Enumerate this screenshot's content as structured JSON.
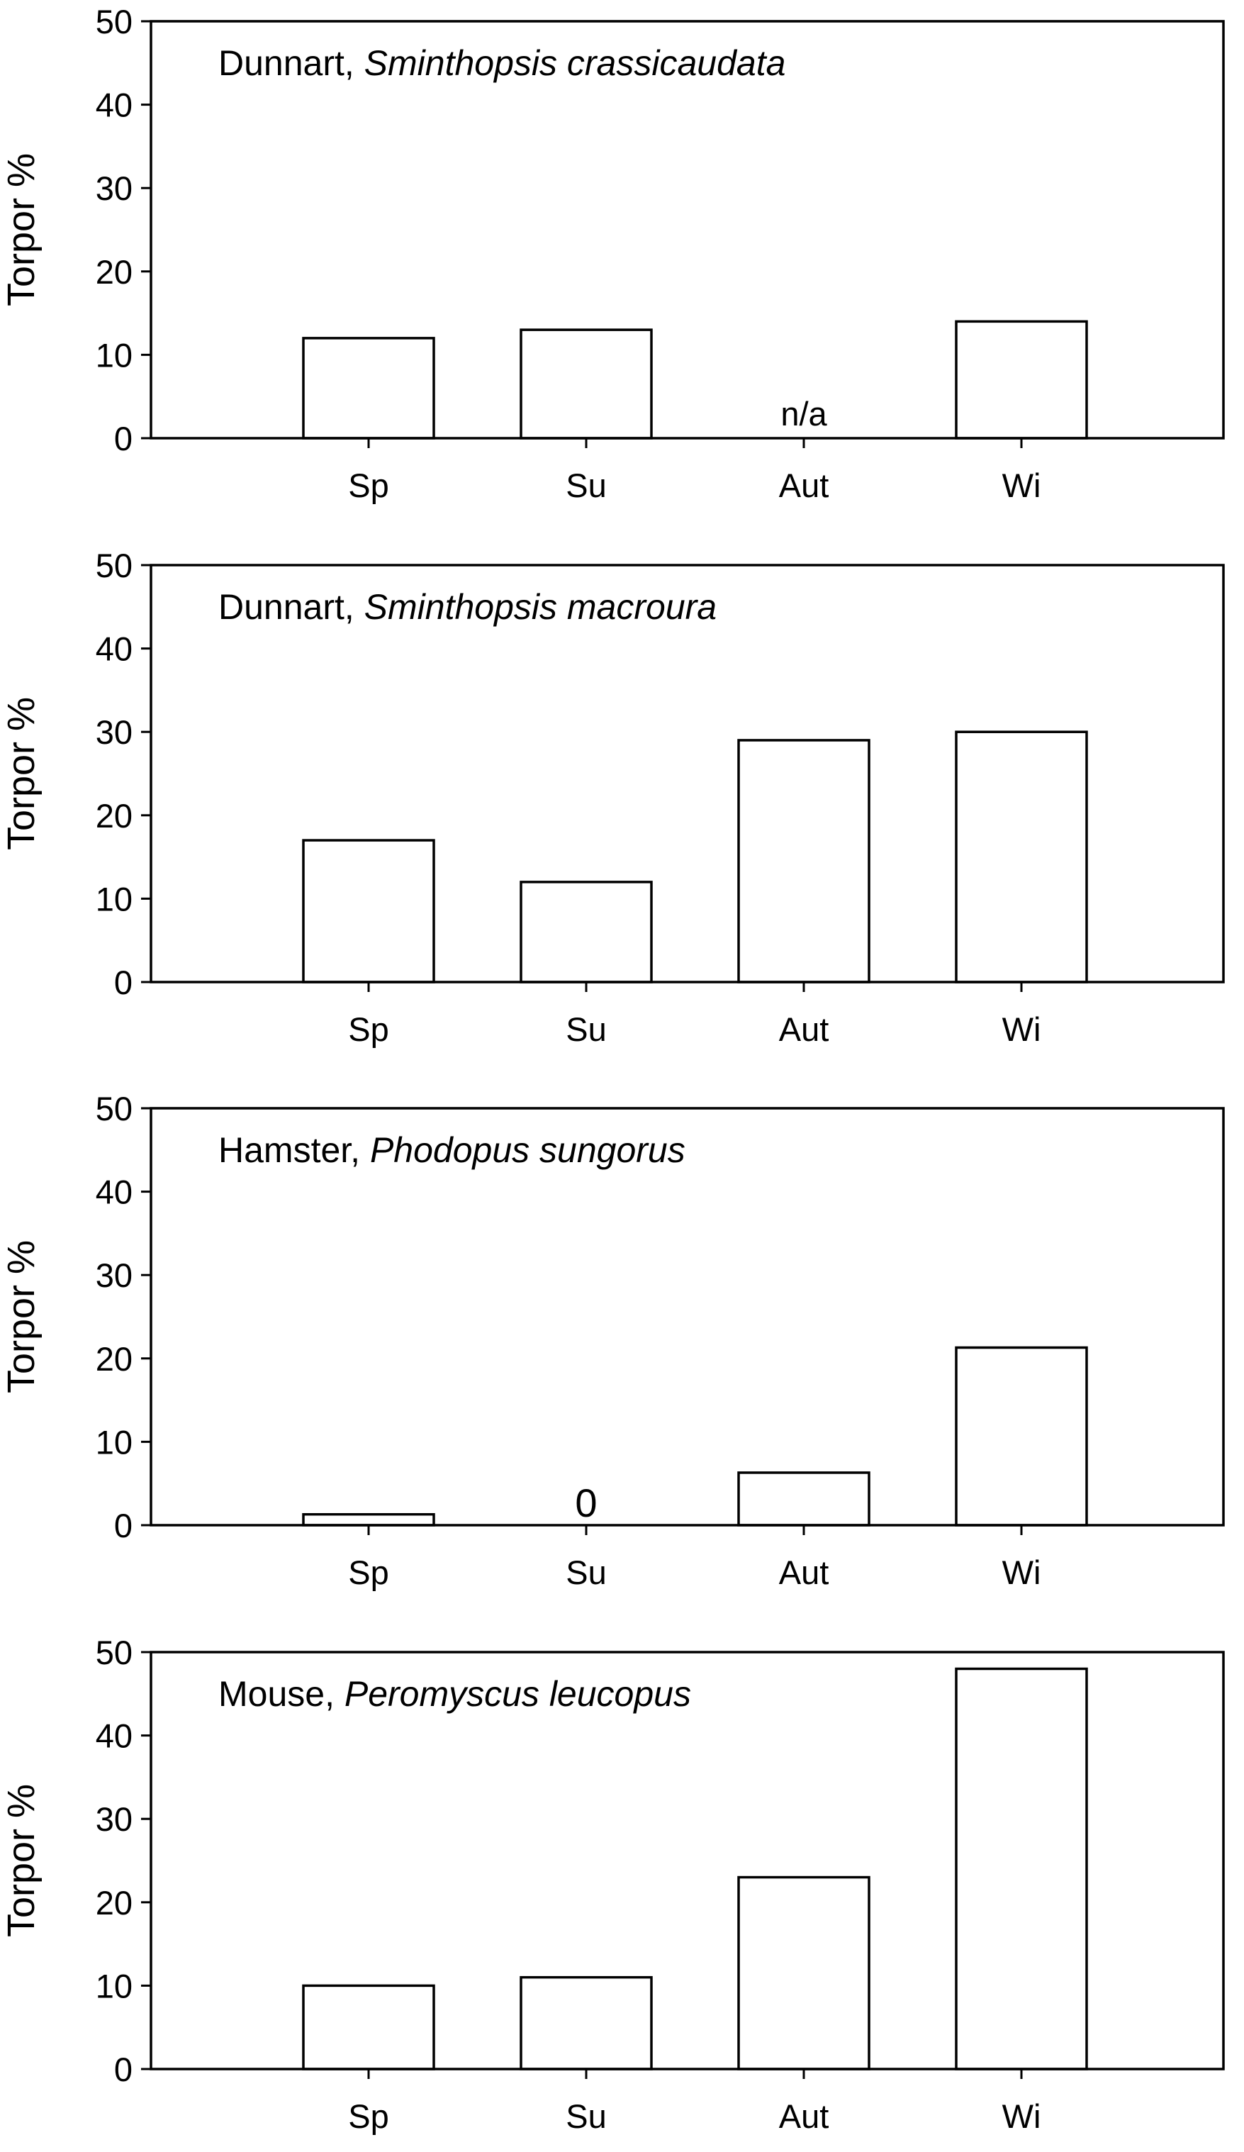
{
  "chart_data": [
    {
      "type": "bar",
      "title_common": "Dunnart, ",
      "title_species": "Sminthopsis crassicaudata",
      "ylabel": "Torpor %",
      "xlabel": "",
      "ylim": [
        0,
        50
      ],
      "yticks": [
        0,
        10,
        20,
        30,
        40,
        50
      ],
      "categories": [
        "Sp",
        "Su",
        "Aut",
        "Wi"
      ],
      "values": [
        12,
        13,
        null,
        14
      ],
      "annotations": [
        {
          "category": "Aut",
          "text": "n/a"
        }
      ],
      "grid": false,
      "legend": "none"
    },
    {
      "type": "bar",
      "title_common": "Dunnart, ",
      "title_species": "Sminthopsis macroura",
      "ylabel": "Torpor %",
      "xlabel": "",
      "ylim": [
        0,
        50
      ],
      "yticks": [
        0,
        10,
        20,
        30,
        40,
        50
      ],
      "categories": [
        "Sp",
        "Su",
        "Aut",
        "Wi"
      ],
      "values": [
        17,
        12,
        29,
        30
      ],
      "annotations": [],
      "grid": false,
      "legend": "none"
    },
    {
      "type": "bar",
      "title_common": "Hamster, ",
      "title_species": "Phodopus sungorus",
      "ylabel": "Torpor %",
      "xlabel": "",
      "ylim": [
        0,
        50
      ],
      "yticks": [
        0,
        10,
        20,
        30,
        40,
        50
      ],
      "categories": [
        "Sp",
        "Su",
        "Aut",
        "Wi"
      ],
      "values": [
        1.3,
        0,
        6.3,
        21.3
      ],
      "annotations": [
        {
          "category": "Su",
          "text": "0"
        }
      ],
      "grid": false,
      "legend": "none"
    },
    {
      "type": "bar",
      "title_common": "Mouse, ",
      "title_species": "Peromyscus leucopus",
      "ylabel": "Torpor %",
      "xlabel": "",
      "ylim": [
        0,
        50
      ],
      "yticks": [
        0,
        10,
        20,
        30,
        40,
        50
      ],
      "categories": [
        "Sp",
        "Su",
        "Aut",
        "Wi"
      ],
      "values": [
        10,
        11,
        23,
        48
      ],
      "annotations": [],
      "grid": false,
      "legend": "none"
    }
  ],
  "colors": {
    "bar_fill": "#ffffff",
    "bar_stroke": "#000000",
    "axis": "#000000",
    "text": "#000000"
  }
}
